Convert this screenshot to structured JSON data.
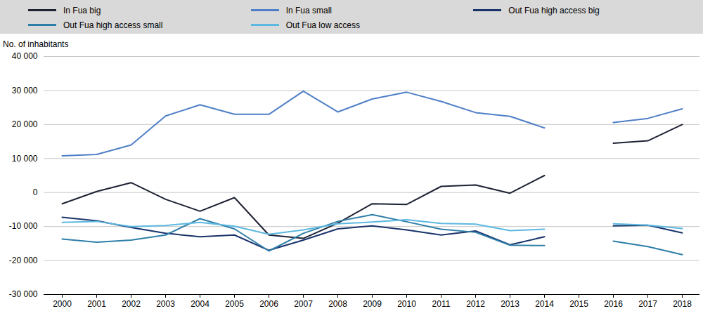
{
  "chart_data": {
    "type": "line",
    "y_label": "No. of inhabitants",
    "categories": [
      "2000",
      "2001",
      "2002",
      "2003",
      "2004",
      "2005",
      "2006",
      "2007",
      "2008",
      "2009",
      "2010",
      "2011",
      "2012",
      "2013",
      "2014",
      "2015",
      "2016",
      "2017",
      "2018"
    ],
    "series": [
      {
        "name": "In Fua big",
        "color": "#1e2233",
        "values": [
          -3300,
          300,
          2900,
          -2000,
          -5500,
          -1500,
          -12500,
          -13500,
          -9000,
          -3300,
          -3500,
          1800,
          2200,
          -200,
          5000,
          null,
          14500,
          15200,
          20000
        ]
      },
      {
        "name": "In Fua small",
        "color": "#4f7fc7",
        "values": [
          10800,
          11200,
          14000,
          22500,
          25800,
          23000,
          23000,
          29800,
          23700,
          27500,
          29500,
          26800,
          23500,
          22400,
          19000,
          null,
          20600,
          21800,
          24600
        ]
      },
      {
        "name": "Out Fua high access big",
        "color": "#19336b",
        "values": [
          -7300,
          -8300,
          -10300,
          -12000,
          -13000,
          -12500,
          -17000,
          -14000,
          -10700,
          -9800,
          -11000,
          -12500,
          -11300,
          -15400,
          -13000,
          null,
          -9800,
          -9600,
          -11900
        ]
      },
      {
        "name": "Out Fua high access small",
        "color": "#2d7ea8",
        "values": [
          -13700,
          -14600,
          -14000,
          -12500,
          -7700,
          -10700,
          -17200,
          -12000,
          -8500,
          -6500,
          -8600,
          -10800,
          -11700,
          -15500,
          -15600,
          null,
          -14300,
          -15900,
          -18300
        ]
      },
      {
        "name": "Out Fua low access",
        "color": "#5cb8e0",
        "values": [
          -8800,
          -8500,
          -10000,
          -9700,
          -8800,
          -9900,
          -12300,
          -11000,
          -9200,
          -8700,
          -8000,
          -9100,
          -9300,
          -11200,
          -10800,
          null,
          -9200,
          -9600,
          -10600
        ]
      }
    ],
    "ylim": [
      -30000,
      40000
    ],
    "yticks": [
      {
        "value": -30000,
        "label": "-30 000"
      },
      {
        "value": -20000,
        "label": "-20 000"
      },
      {
        "value": -10000,
        "label": "-10 000"
      },
      0,
      {
        "value": 10000,
        "label": "10 000"
      },
      {
        "value": 20000,
        "label": "20 000"
      },
      {
        "value": 30000,
        "label": "30 000"
      },
      {
        "value": 40000,
        "label": "40 000"
      }
    ],
    "grid": true,
    "legend": "top"
  }
}
